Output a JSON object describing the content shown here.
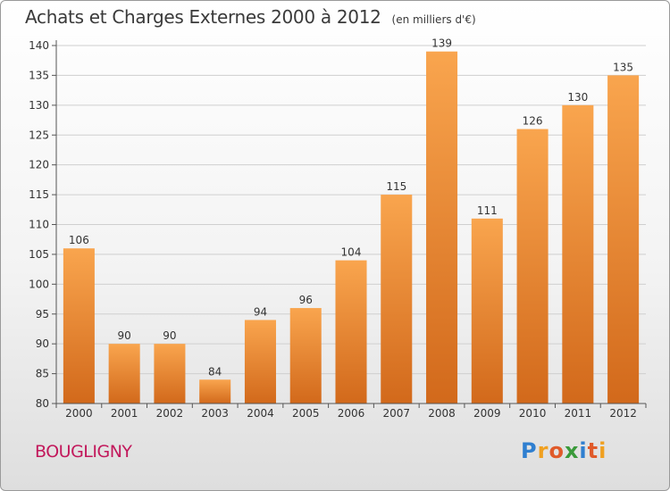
{
  "title": "Achats et Charges Externes 2000 à 2012",
  "unit_note": "(en milliers d'€)",
  "commune": "BOUGLIGNY",
  "logo": {
    "text": "Proxiti",
    "letters": [
      {
        "ch": "P",
        "color": "#2f7fd0"
      },
      {
        "ch": "r",
        "color": "#f0a020"
      },
      {
        "ch": "o",
        "color": "#e05a2a"
      },
      {
        "ch": "x",
        "color": "#3a9a3a"
      },
      {
        "ch": "i",
        "color": "#2f7fd0"
      },
      {
        "ch": "t",
        "color": "#e05a2a"
      },
      {
        "ch": "i",
        "color": "#f0a020"
      }
    ]
  },
  "colors": {
    "bar_top": "#f9a54e",
    "bar_bottom": "#d2691b",
    "commune": "#c2185b",
    "grid": "#cfcfcf"
  },
  "chart_data": {
    "type": "bar",
    "categories": [
      "2000",
      "2001",
      "2002",
      "2003",
      "2004",
      "2005",
      "2006",
      "2007",
      "2008",
      "2009",
      "2010",
      "2011",
      "2012"
    ],
    "values": [
      106,
      90,
      90,
      84,
      94,
      96,
      104,
      115,
      139,
      111,
      126,
      130,
      135
    ],
    "ylim": [
      80,
      140
    ],
    "yticks": [
      80,
      85,
      90,
      95,
      100,
      105,
      110,
      115,
      120,
      125,
      130,
      135,
      140
    ],
    "grid": true,
    "xlabel": "",
    "ylabel": ""
  }
}
